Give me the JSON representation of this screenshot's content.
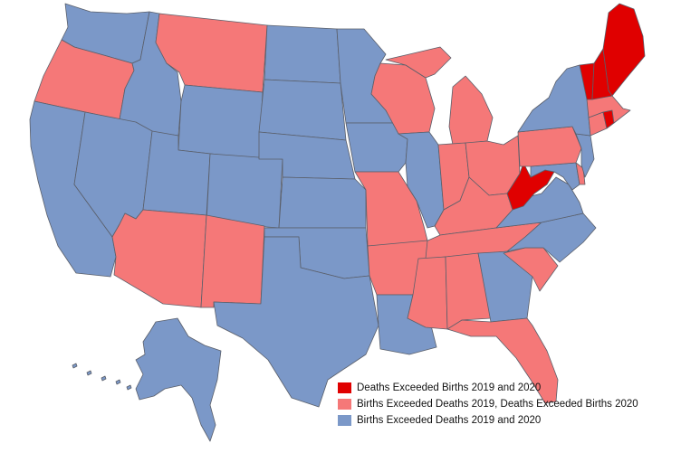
{
  "colors": {
    "both_years_deaths": "#e00000",
    "mixed": "#f57878",
    "both_years_births": "#7b98c8"
  },
  "legend": [
    {
      "label": "Deaths Exceeded Births 2019 and 2020",
      "color_key": "both_years_deaths"
    },
    {
      "label": "Births Exceeded Deaths 2019, Deaths Exceeded Births 2020",
      "color_key": "mixed"
    },
    {
      "label": "Births Exceeded Deaths 2019 and 2020",
      "color_key": "both_years_births"
    }
  ],
  "states": {
    "ME": "both_years_deaths",
    "NH": "both_years_deaths",
    "VT": "both_years_deaths",
    "RI": "both_years_deaths",
    "WV": "both_years_deaths",
    "OR": "mixed",
    "MT": "mixed",
    "AZ": "mixed",
    "NM": "mixed",
    "MO": "mixed",
    "AR": "mixed",
    "WI": "mixed",
    "MI": "mixed",
    "IN": "mixed",
    "OH": "mixed",
    "KY": "mixed",
    "TN": "mixed",
    "MS": "mixed",
    "AL": "mixed",
    "SC": "mixed",
    "FL": "mixed",
    "PA": "mixed",
    "MA": "mixed",
    "CT": "mixed",
    "DE": "mixed",
    "WA": "both_years_births",
    "ID": "both_years_births",
    "WY": "both_years_births",
    "NV": "both_years_births",
    "UT": "both_years_births",
    "CO": "both_years_births",
    "CA": "both_years_births",
    "ND": "both_years_births",
    "SD": "both_years_births",
    "NE": "both_years_births",
    "KS": "both_years_births",
    "OK": "both_years_births",
    "TX": "both_years_births",
    "MN": "both_years_births",
    "IA": "both_years_births",
    "IL": "both_years_births",
    "LA": "both_years_births",
    "GA": "both_years_births",
    "NC": "both_years_births",
    "VA": "both_years_births",
    "MD": "both_years_births",
    "NJ": "both_years_births",
    "NY": "both_years_births",
    "AK": "both_years_births"
  }
}
